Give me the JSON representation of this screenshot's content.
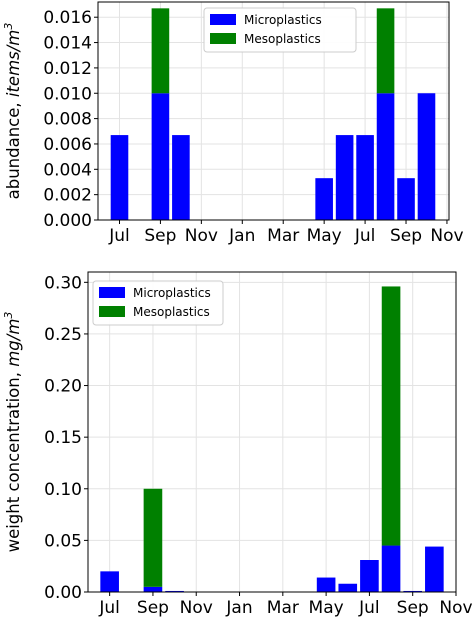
{
  "colors": {
    "microplastics": "#0000ff",
    "mesoplastics": "#008000"
  },
  "chart_data": [
    {
      "type": "bar",
      "stacked": true,
      "ylabel_text": "abundance, ",
      "ylabel_italic": "items/m",
      "ylabel_sup": "3",
      "ylim": [
        0,
        0.0172
      ],
      "yticks": [
        0.0,
        0.002,
        0.004,
        0.006,
        0.008,
        0.01,
        0.012,
        0.014,
        0.016
      ],
      "ytick_labels": [
        "0.000",
        "0.002",
        "0.004",
        "0.006",
        "0.008",
        "0.010",
        "0.012",
        "0.014",
        "0.016"
      ],
      "xtick_labels": [
        "Jul",
        "Sep",
        "Nov",
        "Jan",
        "Mar",
        "May",
        "Jul",
        "Sep",
        "Nov"
      ],
      "grid": true,
      "legend_position": "top-center",
      "categories": [
        "Jul",
        "Aug",
        "Sep",
        "Oct",
        "Nov",
        "Dec",
        "Jan",
        "Feb",
        "Mar",
        "Apr",
        "May",
        "Jun",
        "Jul",
        "Aug",
        "Sep",
        "Oct",
        "Nov"
      ],
      "series": [
        {
          "name": "Microplastics",
          "values": [
            0.0067,
            0,
            0.01,
            0.0067,
            0,
            0,
            0,
            0,
            0,
            0,
            0.0033,
            0.0067,
            0.0067,
            0.01,
            0.0033,
            0.01,
            0
          ]
        },
        {
          "name": "Mesoplastics",
          "values": [
            0,
            0,
            0.0067,
            0,
            0,
            0,
            0,
            0,
            0,
            0,
            0,
            0,
            0,
            0.0067,
            0,
            0,
            0
          ]
        }
      ]
    },
    {
      "type": "bar",
      "stacked": true,
      "ylabel_text": "weight concentration, ",
      "ylabel_italic": "mg/m",
      "ylabel_sup": "3",
      "ylim": [
        0,
        0.31
      ],
      "yticks": [
        0.0,
        0.05,
        0.1,
        0.15,
        0.2,
        0.25,
        0.3
      ],
      "ytick_labels": [
        "0.00",
        "0.05",
        "0.10",
        "0.15",
        "0.20",
        "0.25",
        "0.30"
      ],
      "xtick_labels": [
        "Jul",
        "Sep",
        "Nov",
        "Jan",
        "Mar",
        "May",
        "Jul",
        "Sep",
        "Nov"
      ],
      "grid": true,
      "legend_position": "top-left",
      "categories": [
        "Jul",
        "Aug",
        "Sep",
        "Oct",
        "Nov",
        "Dec",
        "Jan",
        "Feb",
        "Mar",
        "Apr",
        "May",
        "Jun",
        "Jul",
        "Aug",
        "Sep",
        "Oct",
        "Nov"
      ],
      "series": [
        {
          "name": "Microplastics",
          "values": [
            0.02,
            0,
            0.005,
            0.001,
            0,
            0,
            0,
            0,
            0,
            0,
            0.014,
            0.008,
            0.031,
            0.045,
            0.001,
            0.044,
            0
          ]
        },
        {
          "name": "Mesoplastics",
          "values": [
            0,
            0,
            0.095,
            0,
            0,
            0,
            0,
            0,
            0,
            0,
            0,
            0,
            0,
            0.251,
            0,
            0,
            0
          ]
        }
      ]
    }
  ]
}
